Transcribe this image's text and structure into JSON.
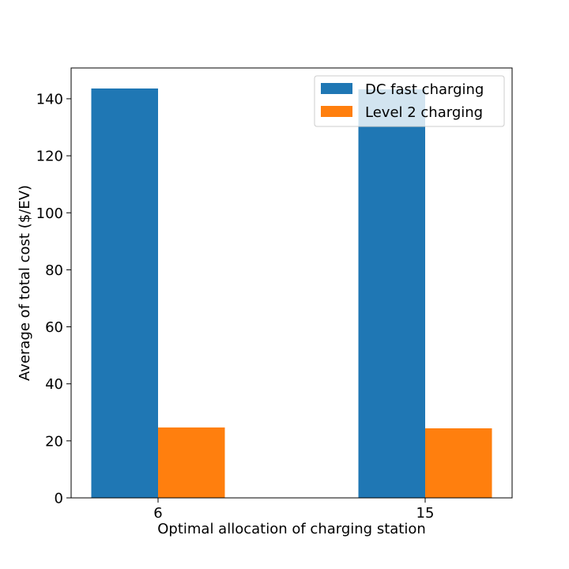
{
  "chart_data": {
    "type": "bar",
    "categories": [
      "6",
      "15"
    ],
    "series": [
      {
        "name": "DC fast charging",
        "values": [
          143.6,
          143.3
        ],
        "color": "#1f77b4"
      },
      {
        "name": "Level 2 charging",
        "values": [
          24.7,
          24.4
        ],
        "color": "#ff7f0e"
      }
    ],
    "xlabel": "Optimal allocation of charging station",
    "ylabel": "Average of total cost ($/EV)",
    "ylim": [
      0,
      150.8
    ],
    "yticks": [
      0,
      20,
      40,
      60,
      80,
      100,
      120,
      140
    ],
    "grid": false,
    "legend_position": "top-right"
  }
}
